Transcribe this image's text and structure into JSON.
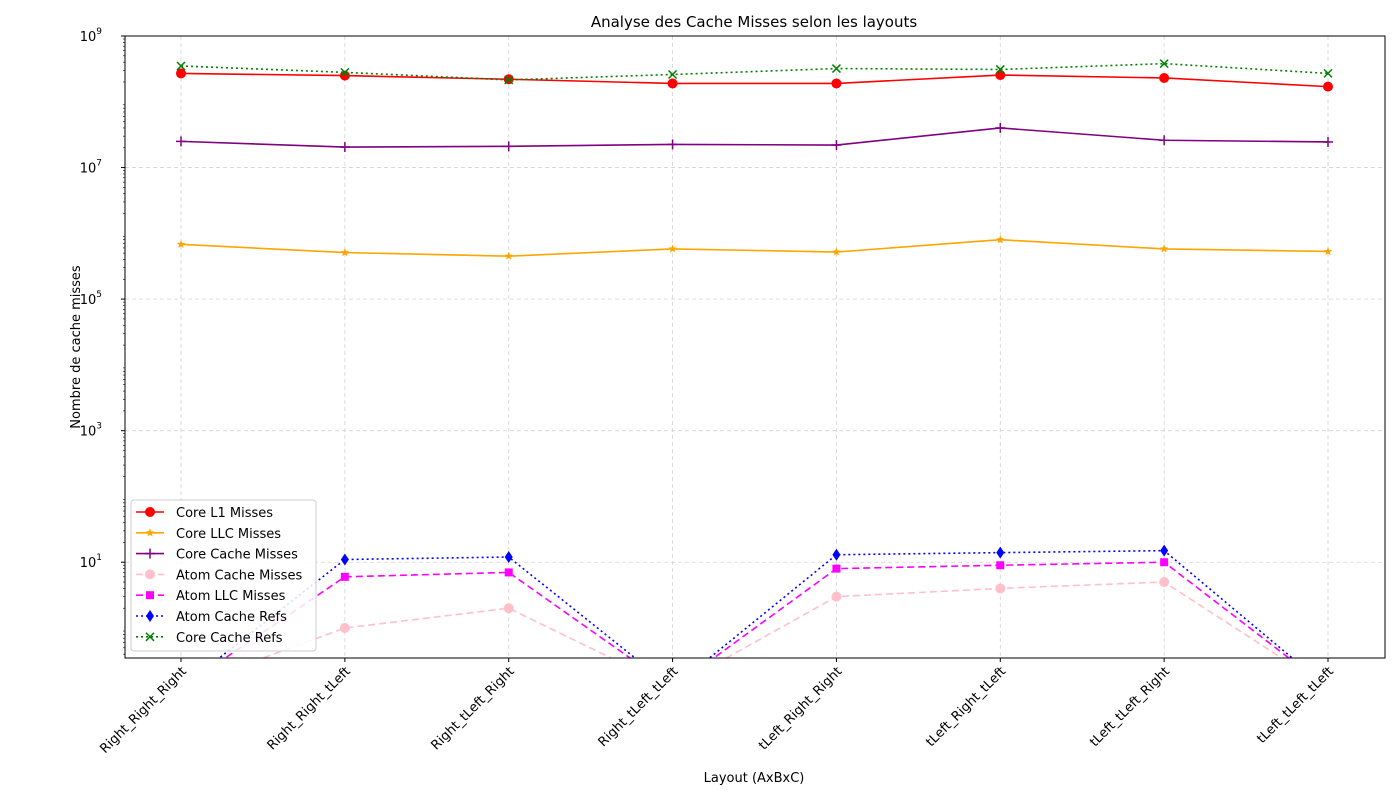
{
  "chart_data": {
    "type": "line",
    "title": "Analyse des Cache Misses selon les layouts",
    "xlabel": "Layout (AxBxC)",
    "ylabel": "Nombre de cache misses",
    "yscale": "log",
    "ylim": [
      0.35,
      1000000000
    ],
    "grid": true,
    "legend_position": "lower-left",
    "categories": [
      "Right_Right_Right",
      "Right_Right_tLeft",
      "Right_tLeft_Right",
      "Right_tLeft_tLeft",
      "tLeft_Right_Right",
      "tLeft_Right_tLeft",
      "tLeft_tLeft_Right",
      "tLeft_tLeft_tLeft"
    ],
    "yticks": [
      {
        "value": 10,
        "base": "10",
        "exp": "1"
      },
      {
        "value": 1000,
        "base": "10",
        "exp": "3"
      },
      {
        "value": 100000,
        "base": "10",
        "exp": "5"
      },
      {
        "value": 10000000,
        "base": "10",
        "exp": "7"
      },
      {
        "value": 1000000000,
        "base": "10",
        "exp": "9"
      }
    ],
    "series": [
      {
        "name": "Core L1 Misses",
        "color": "#ff0000",
        "dash": "solid",
        "marker": "circle",
        "values": [
          270000000,
          250000000,
          220000000,
          190000000,
          190000000,
          255000000,
          230000000,
          170000000
        ]
      },
      {
        "name": "Core LLC Misses",
        "color": "#ffa500",
        "dash": "solid",
        "marker": "star",
        "values": [
          680000,
          510000,
          450000,
          580000,
          520000,
          800000,
          580000,
          530000
        ]
      },
      {
        "name": "Core Cache Misses",
        "color": "#800080",
        "dash": "solid",
        "marker": "plus",
        "values": [
          25000000,
          20500000,
          21000000,
          22500000,
          22000000,
          40000000,
          26000000,
          24500000
        ]
      },
      {
        "name": "Atom Cache Misses",
        "color": "#ffc0cb",
        "dash": "dashed",
        "marker": "circle",
        "values": [
          0,
          1,
          2,
          0,
          3,
          4,
          5,
          0
        ]
      },
      {
        "name": "Atom LLC Misses",
        "color": "#ff00ff",
        "dash": "dashed",
        "marker": "square",
        "values": [
          0,
          6,
          7,
          0,
          8,
          9,
          10,
          0
        ]
      },
      {
        "name": "Atom Cache Refs",
        "color": "#0000ff",
        "dash": "dotted",
        "marker": "diamond",
        "values": [
          0,
          11,
          12,
          0,
          13,
          14,
          15,
          0
        ]
      },
      {
        "name": "Core Cache Refs",
        "color": "#008000",
        "dash": "dotted",
        "marker": "x",
        "values": [
          350000000,
          280000000,
          215000000,
          260000000,
          320000000,
          310000000,
          380000000,
          270000000
        ]
      }
    ]
  }
}
